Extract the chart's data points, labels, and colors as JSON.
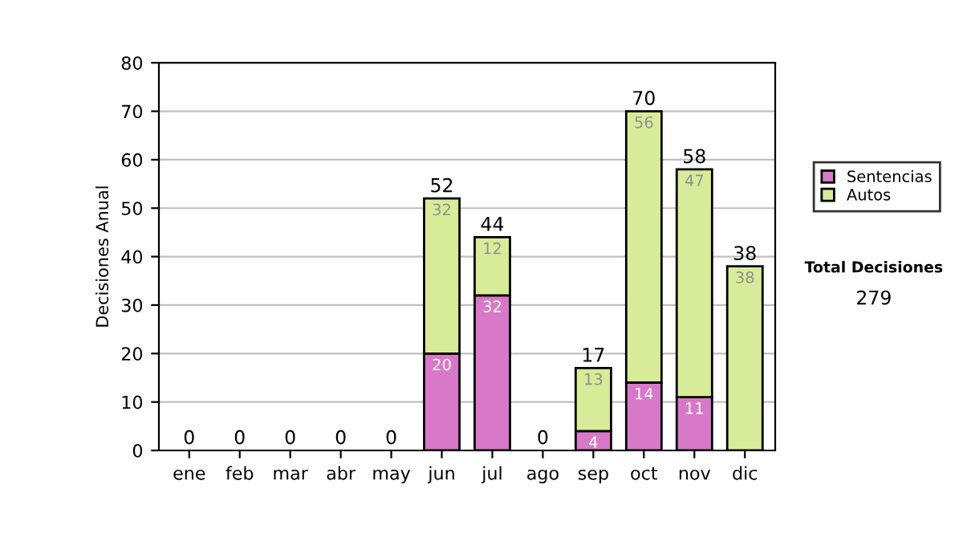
{
  "chart_data": {
    "type": "bar",
    "stacked": true,
    "ylabel": "Decisiones Anual",
    "categories": [
      "ene",
      "feb",
      "mar",
      "abr",
      "may",
      "jun",
      "jul",
      "ago",
      "sep",
      "oct",
      "nov",
      "dic"
    ],
    "series": [
      {
        "name": "Sentencias",
        "color": "#d878c8",
        "values": [
          0,
          0,
          0,
          0,
          0,
          20,
          32,
          0,
          4,
          14,
          11,
          0
        ],
        "value_labels": [
          null,
          null,
          null,
          null,
          null,
          "20",
          "32",
          null,
          "4",
          "14",
          "11",
          null
        ]
      },
      {
        "name": "Autos",
        "color": "#d8eb98",
        "values": [
          0,
          0,
          0,
          0,
          0,
          32,
          12,
          0,
          13,
          56,
          47,
          38
        ],
        "value_labels": [
          null,
          null,
          null,
          null,
          null,
          "32",
          "12",
          null,
          "13",
          "56",
          "47",
          "38"
        ]
      }
    ],
    "totals": [
      "0",
      "0",
      "0",
      "0",
      "0",
      "52",
      "44",
      "0",
      "17",
      "70",
      "58",
      "38"
    ],
    "ylim": [
      0,
      80
    ],
    "yticks": [
      0,
      10,
      20,
      30,
      40,
      50,
      60,
      70,
      80
    ],
    "grid": "y",
    "legend": "right",
    "annotations": [
      "Total Decisiones",
      "279"
    ]
  }
}
